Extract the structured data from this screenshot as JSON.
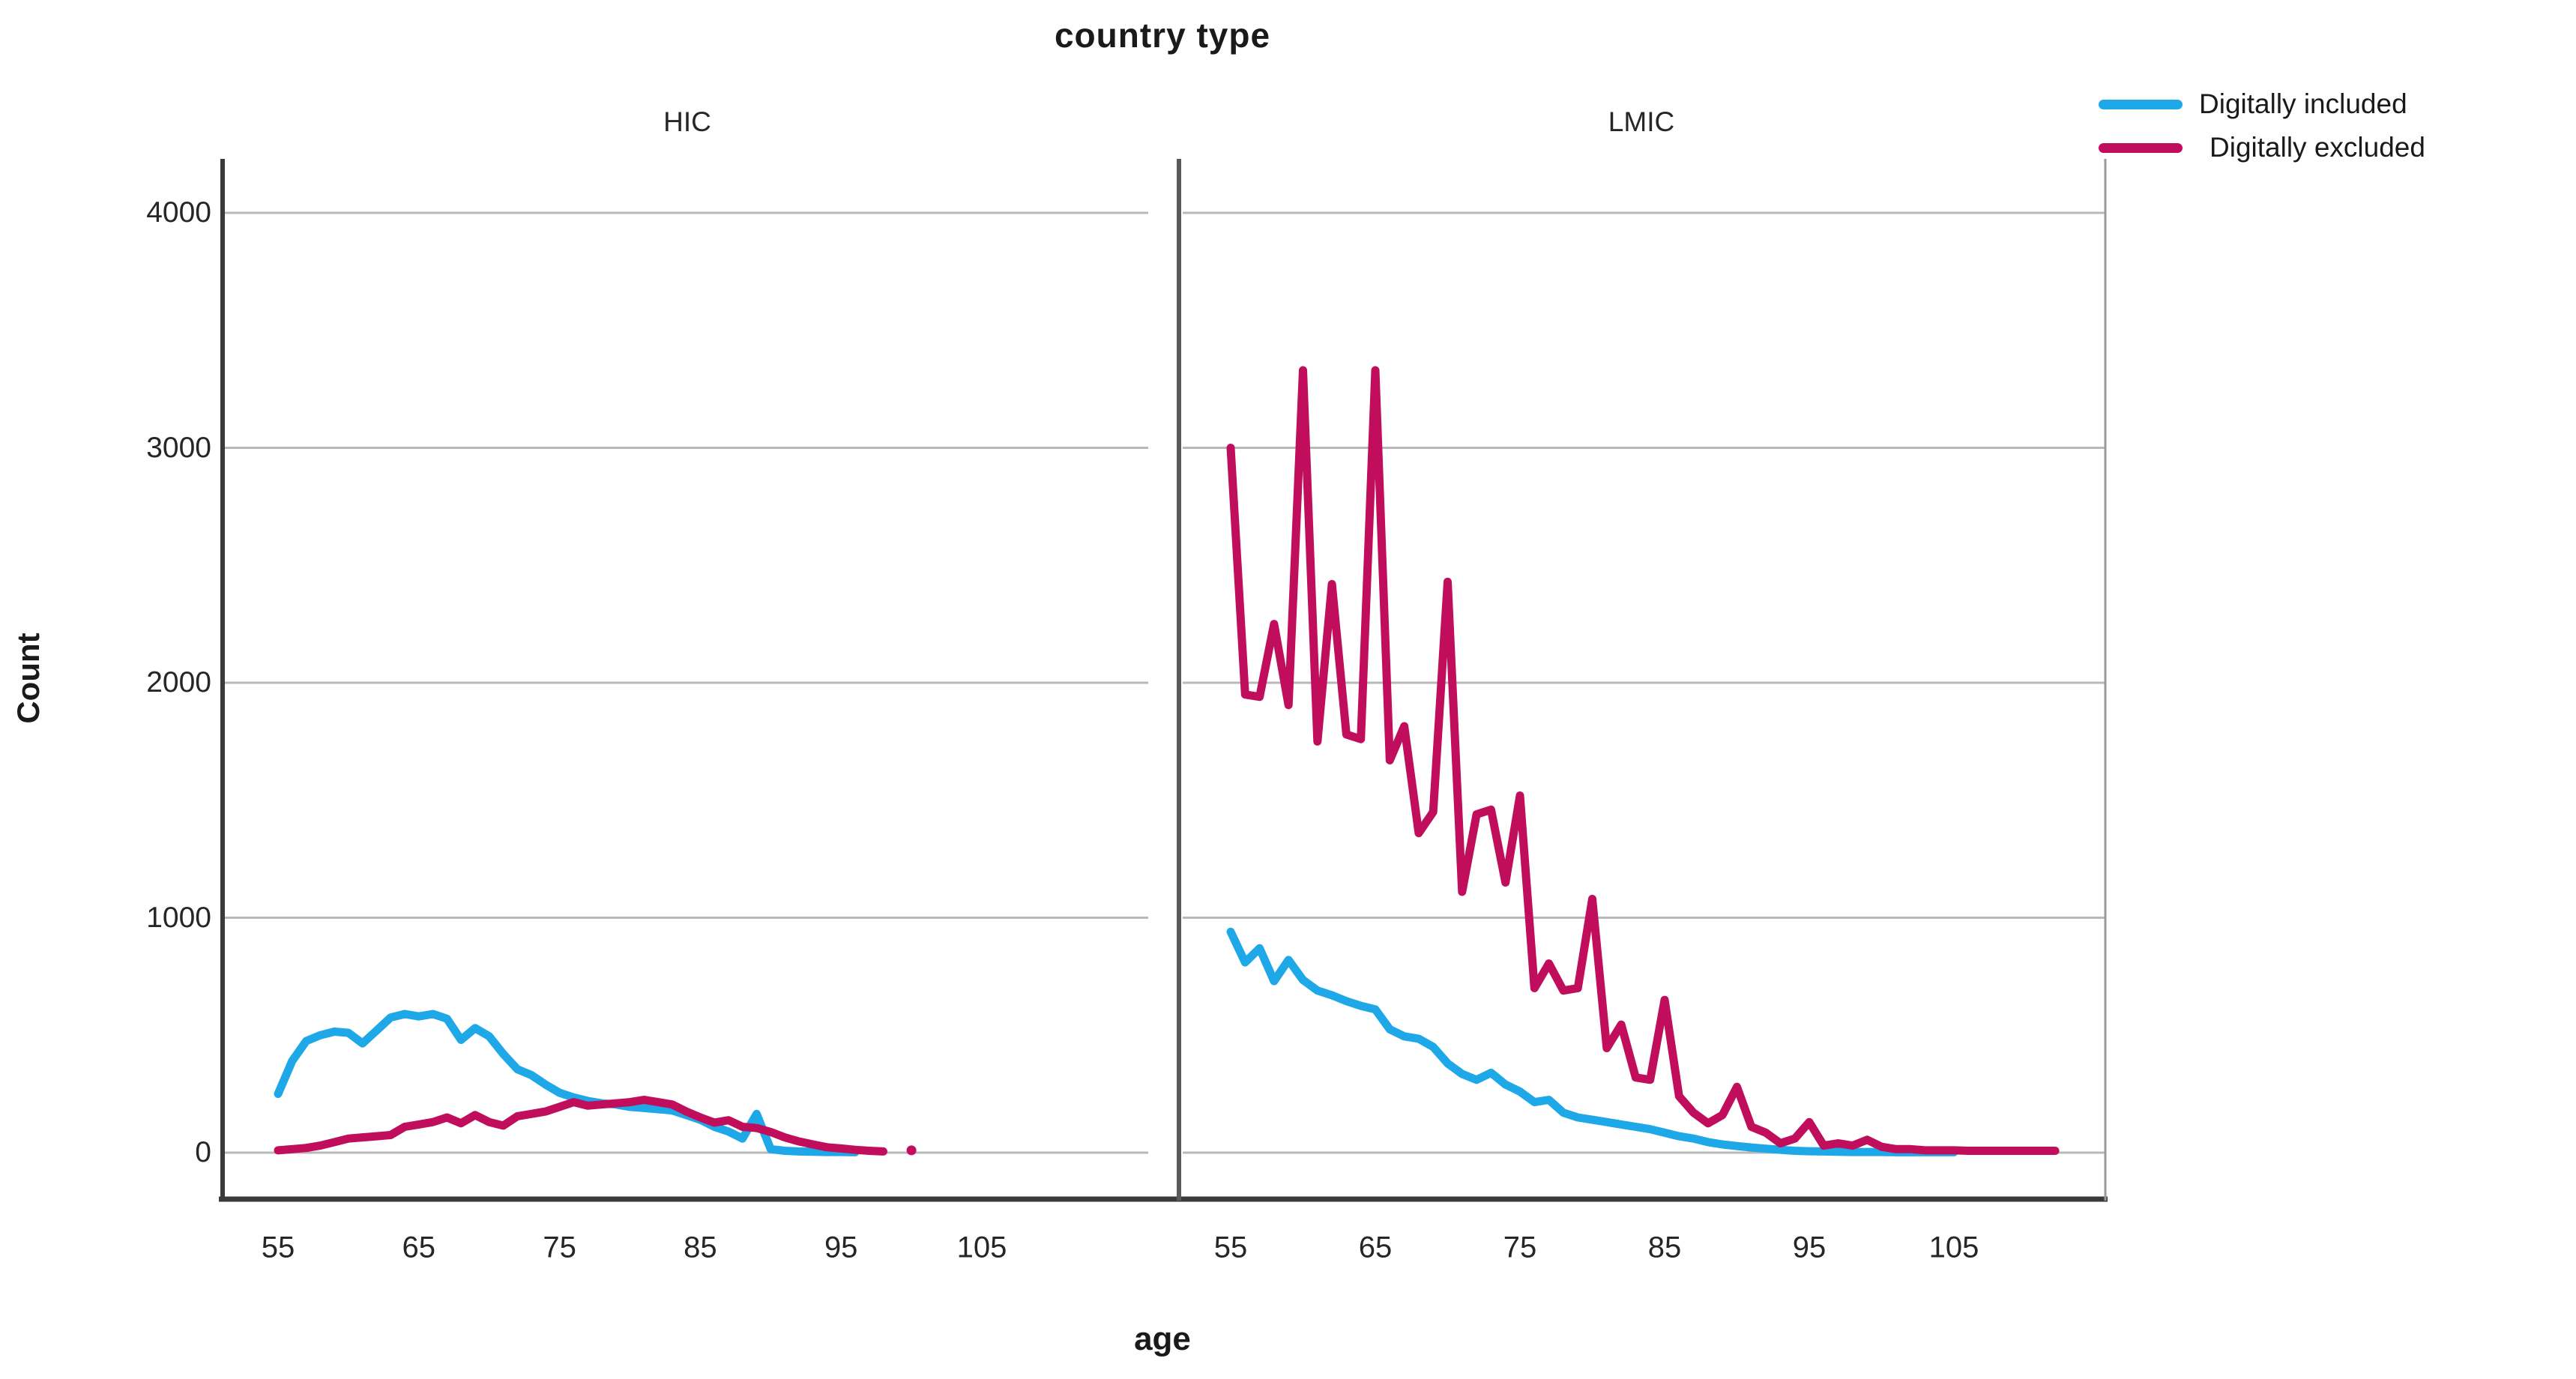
{
  "title": "country type",
  "axes": {
    "x_label": "age",
    "y_label": "Count",
    "y_ticks": [
      4000,
      3000,
      2000,
      1000,
      0
    ],
    "x_ticks": [
      55,
      65,
      75,
      85,
      95,
      105
    ]
  },
  "panels": [
    {
      "label": "HIC"
    },
    {
      "label": "LMIC"
    }
  ],
  "legend": [
    {
      "label": "Digitally included",
      "color": "#1FA8E8"
    },
    {
      "label": "Digitally excluded",
      "color": "#C00D5C"
    }
  ],
  "colors": {
    "included_line": "#1FA8E8",
    "excluded_line": "#C00D5C",
    "gridline": "#b8b8b8",
    "axis_line": "#3a3a3a",
    "panel_divider": "#5a5a5a",
    "panel_right_edge": "#9a9a9a",
    "text": "#1a1a1a"
  },
  "chart_data": {
    "type": "line",
    "title": "country type",
    "xlabel": "age",
    "ylabel": "Count",
    "facets": "country type (HIC | LMIC)",
    "ylim": [
      0,
      4300
    ],
    "y_gridlines": [
      0,
      1000,
      2000,
      3000,
      4000
    ],
    "x_tick_values": [
      55,
      65,
      75,
      85,
      95,
      105
    ],
    "grid": "horizontal-only",
    "legend_position": "top-right",
    "panels": [
      {
        "label": "HIC",
        "series": [
          {
            "name": "Digitally included",
            "color": "#1FA8E8",
            "start_age": 55,
            "counts": [
              250,
              390,
              475,
              500,
              515,
              510,
              465,
              520,
              575,
              590,
              580,
              590,
              570,
              480,
              530,
              495,
              420,
              355,
              330,
              290,
              255,
              235,
              220,
              210,
              205,
              195,
              190,
              185,
              180,
              160,
              140,
              110,
              90,
              60,
              165,
              15,
              8,
              5,
              4,
              3,
              3,
              2
            ]
          },
          {
            "name": "Digitally excluded",
            "color": "#C00D5C",
            "start_age": 55,
            "counts": [
              10,
              15,
              20,
              30,
              45,
              60,
              65,
              70,
              75,
              110,
              120,
              130,
              150,
              125,
              160,
              130,
              115,
              155,
              165,
              175,
              195,
              215,
              200,
              205,
              210,
              215,
              225,
              215,
              205,
              175,
              150,
              128,
              138,
              110,
              105,
              88,
              65,
              48,
              35,
              23,
              18,
              12,
              8,
              5
            ],
            "isolated_points": [
              {
                "age": 100,
                "count": 10
              }
            ]
          }
        ]
      },
      {
        "label": "LMIC",
        "series": [
          {
            "name": "Digitally included",
            "color": "#1FA8E8",
            "start_age": 55,
            "counts": [
              940,
              810,
              870,
              730,
              820,
              735,
              690,
              670,
              645,
              625,
              610,
              525,
              495,
              485,
              450,
              380,
              335,
              310,
              340,
              290,
              260,
              215,
              225,
              170,
              150,
              140,
              130,
              120,
              110,
              100,
              85,
              70,
              60,
              45,
              35,
              28,
              22,
              17,
              12,
              8,
              6,
              5,
              4,
              3,
              3,
              3,
              2,
              2,
              2,
              2,
              2
            ]
          },
          {
            "name": "Digitally excluded",
            "color": "#C00D5C",
            "start_age": 55,
            "counts": [
              3000,
              1950,
              1940,
              2250,
              1905,
              3330,
              1750,
              2420,
              1780,
              1760,
              3330,
              1670,
              1815,
              1360,
              1450,
              2430,
              1110,
              1440,
              1460,
              1150,
              1520,
              700,
              805,
              690,
              700,
              1080,
              445,
              545,
              320,
              310,
              650,
              240,
              170,
              125,
              160,
              280,
              110,
              85,
              40,
              60,
              130,
              30,
              40,
              30,
              55,
              25,
              15,
              15,
              10,
              10,
              10,
              8,
              8,
              8,
              8,
              8,
              8,
              8
            ]
          }
        ]
      }
    ]
  }
}
